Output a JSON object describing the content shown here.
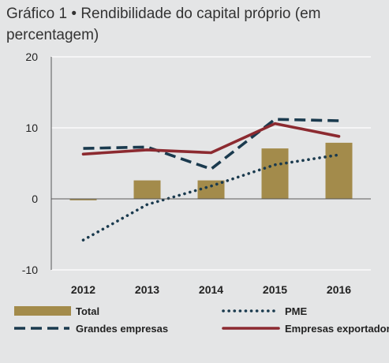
{
  "chart_data": {
    "type": "bar+line",
    "title_prefix": "Gráfico 1",
    "title_separator": "•",
    "title": "Rendibilidade do capital próprio (em percentagem)",
    "categories": [
      "2012",
      "2013",
      "2014",
      "2015",
      "2016"
    ],
    "ylim": [
      -10,
      20
    ],
    "yticks": [
      "20",
      "10",
      "0",
      "-10"
    ],
    "ytick_values": [
      20,
      10,
      0,
      -10
    ],
    "grid": "horizontal",
    "legend_position": "bottom",
    "series": [
      {
        "name": "Total",
        "type": "bar",
        "color": "#a38b4b",
        "values": [
          -0.2,
          2.6,
          2.6,
          7.1,
          7.9
        ]
      },
      {
        "name": "PME",
        "type": "line",
        "style": "dotted",
        "color": "#1a3a4e",
        "values": [
          -5.8,
          -0.8,
          1.8,
          4.8,
          6.2
        ]
      },
      {
        "name": "Grandes empresas",
        "type": "line",
        "style": "dashed",
        "color": "#1a3a4e",
        "values": [
          7.1,
          7.3,
          4.2,
          11.2,
          11.0
        ]
      },
      {
        "name": "Empresas exportadoras",
        "type": "line",
        "style": "solid",
        "color": "#8c2a30",
        "values": [
          6.3,
          6.9,
          6.5,
          10.6,
          8.8
        ]
      }
    ]
  }
}
